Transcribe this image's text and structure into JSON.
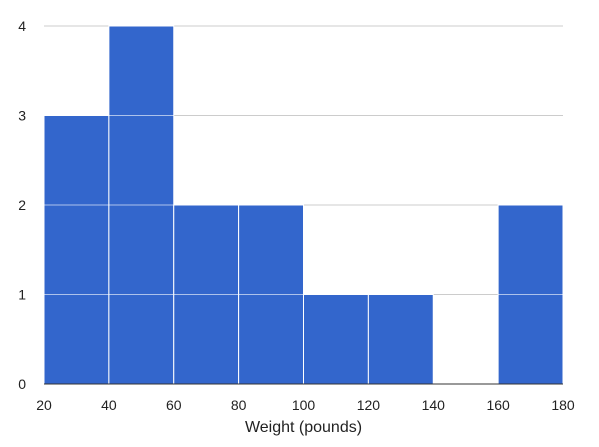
{
  "chart_data": {
    "type": "bar",
    "subtype": "histogram",
    "title": "",
    "xlabel": "Weight (pounds)",
    "ylabel": "",
    "bins": [
      {
        "start": 20,
        "end": 40,
        "count": 3
      },
      {
        "start": 40,
        "end": 60,
        "count": 4
      },
      {
        "start": 60,
        "end": 80,
        "count": 2
      },
      {
        "start": 80,
        "end": 100,
        "count": 2
      },
      {
        "start": 100,
        "end": 120,
        "count": 1
      },
      {
        "start": 120,
        "end": 140,
        "count": 1
      },
      {
        "start": 140,
        "end": 160,
        "count": 0
      },
      {
        "start": 160,
        "end": 180,
        "count": 2
      }
    ],
    "xlim": [
      20,
      180
    ],
    "ylim": [
      0,
      4
    ],
    "xticks": [
      "20",
      "40",
      "60",
      "80",
      "100",
      "120",
      "140",
      "160",
      "180"
    ],
    "yticks": [
      "0",
      "1",
      "2",
      "3",
      "4"
    ],
    "grid": true,
    "colors": {
      "bar": "#3366cc",
      "gridline": "#cccccc",
      "separator": "#ffffff",
      "baseline": "#333333"
    }
  }
}
